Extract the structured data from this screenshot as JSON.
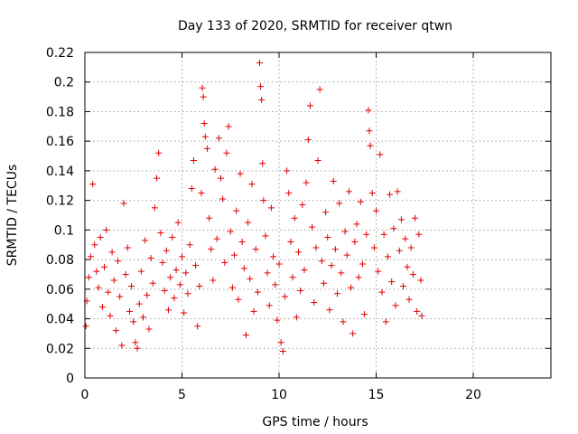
{
  "chart_data": {
    "type": "scatter",
    "title": "Day 133 of 2020, SRMTID for receiver qtwn",
    "xlabel": "GPS time / hours",
    "ylabel": "SRMTID / TECUs",
    "xlim": [
      0,
      24
    ],
    "ylim": [
      0,
      0.22
    ],
    "x_ticks": [
      0,
      5,
      10,
      15,
      20
    ],
    "x_tick_labels": [
      "0",
      "5",
      "10",
      "15",
      "20"
    ],
    "y_ticks": [
      0,
      0.02,
      0.04,
      0.06,
      0.08,
      0.1,
      0.12,
      0.14,
      0.16,
      0.18,
      0.2,
      0.22
    ],
    "y_tick_labels": [
      "0",
      "0.02",
      "0.04",
      "0.06",
      "0.08",
      "0.1",
      "0.12",
      "0.14",
      "0.16",
      "0.18",
      "0.2",
      "0.22"
    ],
    "grid": true,
    "marker": "+",
    "color": "#e00000",
    "series": [
      {
        "points": [
          [
            0.05,
            0.035
          ],
          [
            0.1,
            0.052
          ],
          [
            0.2,
            0.068
          ],
          [
            0.3,
            0.082
          ],
          [
            0.4,
            0.131
          ],
          [
            0.5,
            0.09
          ],
          [
            0.6,
            0.072
          ],
          [
            0.7,
            0.061
          ],
          [
            0.8,
            0.095
          ],
          [
            0.9,
            0.048
          ],
          [
            1.0,
            0.075
          ],
          [
            1.1,
            0.1
          ],
          [
            1.2,
            0.058
          ],
          [
            1.3,
            0.042
          ],
          [
            1.4,
            0.085
          ],
          [
            1.5,
            0.066
          ],
          [
            1.6,
            0.032
          ],
          [
            1.7,
            0.079
          ],
          [
            1.8,
            0.055
          ],
          [
            1.9,
            0.022
          ],
          [
            2.0,
            0.118
          ],
          [
            2.1,
            0.07
          ],
          [
            2.2,
            0.088
          ],
          [
            2.3,
            0.045
          ],
          [
            2.4,
            0.062
          ],
          [
            2.5,
            0.038
          ],
          [
            2.6,
            0.024
          ],
          [
            2.7,
            0.02
          ],
          [
            2.8,
            0.05
          ],
          [
            2.9,
            0.072
          ],
          [
            3.0,
            0.041
          ],
          [
            3.1,
            0.093
          ],
          [
            3.2,
            0.056
          ],
          [
            3.3,
            0.033
          ],
          [
            3.4,
            0.081
          ],
          [
            3.5,
            0.064
          ],
          [
            3.6,
            0.115
          ],
          [
            3.7,
            0.135
          ],
          [
            3.8,
            0.152
          ],
          [
            3.9,
            0.098
          ],
          [
            4.0,
            0.078
          ],
          [
            4.1,
            0.059
          ],
          [
            4.2,
            0.086
          ],
          [
            4.3,
            0.046
          ],
          [
            4.4,
            0.068
          ],
          [
            4.5,
            0.095
          ],
          [
            4.6,
            0.054
          ],
          [
            4.7,
            0.073
          ],
          [
            4.8,
            0.105
          ],
          [
            4.9,
            0.063
          ],
          [
            5.0,
            0.082
          ],
          [
            5.1,
            0.044
          ],
          [
            5.2,
            0.071
          ],
          [
            5.3,
            0.057
          ],
          [
            5.4,
            0.09
          ],
          [
            5.5,
            0.128
          ],
          [
            5.6,
            0.147
          ],
          [
            5.7,
            0.076
          ],
          [
            5.8,
            0.035
          ],
          [
            5.9,
            0.062
          ],
          [
            6.0,
            0.125
          ],
          [
            6.05,
            0.196
          ],
          [
            6.1,
            0.19
          ],
          [
            6.15,
            0.172
          ],
          [
            6.2,
            0.163
          ],
          [
            6.3,
            0.155
          ],
          [
            6.4,
            0.108
          ],
          [
            6.5,
            0.087
          ],
          [
            6.6,
            0.066
          ],
          [
            6.7,
            0.141
          ],
          [
            6.8,
            0.094
          ],
          [
            6.9,
            0.162
          ],
          [
            7.0,
            0.135
          ],
          [
            7.1,
            0.121
          ],
          [
            7.2,
            0.078
          ],
          [
            7.3,
            0.152
          ],
          [
            7.4,
            0.17
          ],
          [
            7.5,
            0.099
          ],
          [
            7.6,
            0.061
          ],
          [
            7.7,
            0.083
          ],
          [
            7.8,
            0.113
          ],
          [
            7.9,
            0.053
          ],
          [
            8.0,
            0.138
          ],
          [
            8.1,
            0.092
          ],
          [
            8.2,
            0.074
          ],
          [
            8.3,
            0.029
          ],
          [
            8.4,
            0.105
          ],
          [
            8.5,
            0.067
          ],
          [
            8.6,
            0.131
          ],
          [
            8.7,
            0.045
          ],
          [
            8.8,
            0.087
          ],
          [
            8.9,
            0.058
          ],
          [
            9.0,
            0.213
          ],
          [
            9.05,
            0.197
          ],
          [
            9.1,
            0.188
          ],
          [
            9.15,
            0.145
          ],
          [
            9.2,
            0.12
          ],
          [
            9.3,
            0.096
          ],
          [
            9.4,
            0.071
          ],
          [
            9.5,
            0.049
          ],
          [
            9.6,
            0.115
          ],
          [
            9.7,
            0.082
          ],
          [
            9.8,
            0.063
          ],
          [
            9.9,
            0.039
          ],
          [
            10.0,
            0.077
          ],
          [
            10.1,
            0.024
          ],
          [
            10.2,
            0.018
          ],
          [
            10.3,
            0.055
          ],
          [
            10.4,
            0.14
          ],
          [
            10.5,
            0.125
          ],
          [
            10.6,
            0.092
          ],
          [
            10.7,
            0.068
          ],
          [
            10.8,
            0.108
          ],
          [
            10.9,
            0.041
          ],
          [
            11.0,
            0.085
          ],
          [
            11.1,
            0.059
          ],
          [
            11.2,
            0.117
          ],
          [
            11.3,
            0.073
          ],
          [
            11.4,
            0.132
          ],
          [
            11.5,
            0.161
          ],
          [
            11.6,
            0.184
          ],
          [
            11.7,
            0.102
          ],
          [
            11.8,
            0.051
          ],
          [
            11.9,
            0.088
          ],
          [
            12.0,
            0.147
          ],
          [
            12.1,
            0.195
          ],
          [
            12.2,
            0.079
          ],
          [
            12.3,
            0.064
          ],
          [
            12.4,
            0.112
          ],
          [
            12.5,
            0.095
          ],
          [
            12.6,
            0.046
          ],
          [
            12.7,
            0.076
          ],
          [
            12.8,
            0.133
          ],
          [
            12.9,
            0.087
          ],
          [
            13.0,
            0.057
          ],
          [
            13.1,
            0.118
          ],
          [
            13.2,
            0.071
          ],
          [
            13.3,
            0.038
          ],
          [
            13.4,
            0.099
          ],
          [
            13.5,
            0.083
          ],
          [
            13.6,
            0.126
          ],
          [
            13.7,
            0.061
          ],
          [
            13.8,
            0.03
          ],
          [
            13.9,
            0.092
          ],
          [
            14.0,
            0.104
          ],
          [
            14.1,
            0.068
          ],
          [
            14.2,
            0.119
          ],
          [
            14.3,
            0.077
          ],
          [
            14.4,
            0.043
          ],
          [
            14.5,
            0.097
          ],
          [
            14.6,
            0.181
          ],
          [
            14.65,
            0.167
          ],
          [
            14.7,
            0.157
          ],
          [
            14.8,
            0.125
          ],
          [
            14.9,
            0.088
          ],
          [
            15.0,
            0.113
          ],
          [
            15.1,
            0.072
          ],
          [
            15.2,
            0.151
          ],
          [
            15.3,
            0.058
          ],
          [
            15.4,
            0.097
          ],
          [
            15.5,
            0.038
          ],
          [
            15.6,
            0.082
          ],
          [
            15.7,
            0.124
          ],
          [
            15.8,
            0.065
          ],
          [
            15.9,
            0.101
          ],
          [
            16.0,
            0.049
          ],
          [
            16.1,
            0.126
          ],
          [
            16.2,
            0.086
          ],
          [
            16.3,
            0.107
          ],
          [
            16.4,
            0.062
          ],
          [
            16.5,
            0.094
          ],
          [
            16.6,
            0.075
          ],
          [
            16.7,
            0.053
          ],
          [
            16.8,
            0.088
          ],
          [
            16.9,
            0.07
          ],
          [
            17.0,
            0.108
          ],
          [
            17.1,
            0.045
          ],
          [
            17.2,
            0.097
          ],
          [
            17.3,
            0.066
          ],
          [
            17.35,
            0.042
          ]
        ]
      }
    ]
  }
}
